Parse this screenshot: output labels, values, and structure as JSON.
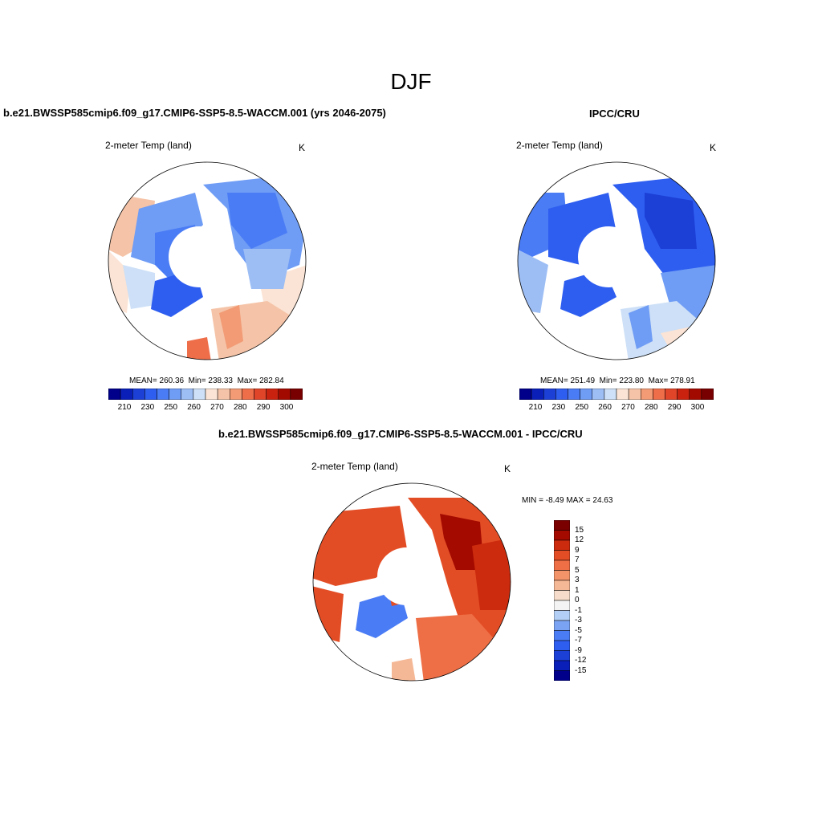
{
  "figure": {
    "title": "DJF"
  },
  "colors": {
    "abs_scale": [
      "#00008a",
      "#0a1fb8",
      "#1c3fd6",
      "#2e5ef0",
      "#4a7cf5",
      "#6f9cf5",
      "#9dbef5",
      "#cde0f7",
      "#fbe4d5",
      "#f5c4a8",
      "#f29b75",
      "#ee6e4a",
      "#e0452a",
      "#c9230f",
      "#a20a00",
      "#790000"
    ],
    "diff_scale": [
      "#00008a",
      "#0a1fb8",
      "#1c3fd6",
      "#2e5ef0",
      "#4a7cf5",
      "#7aa3f3",
      "#b3cff5",
      "#f4f4f4",
      "#f6dccb",
      "#f5b896",
      "#f29369",
      "#ee6e45",
      "#e34d25",
      "#cc2b0d",
      "#a40a00",
      "#7a0000"
    ],
    "land_white": "#ffffff",
    "coast": "#000000"
  },
  "panels": {
    "left": {
      "title": "b.e21.BWSSP585cmip6.f09_g17.CMIP6-SSP5-8.5-WACCM.001 (yrs 2046-2075)",
      "variable": "2-meter Temp (land)",
      "units": "K",
      "stats": {
        "mean_label": "MEAN=",
        "mean": "260.36",
        "min_label": "Min=",
        "min": "238.33",
        "max_label": "Max=",
        "max": "282.84"
      },
      "colorbar_ticks": [
        "210",
        "230",
        "250",
        "260",
        "270",
        "280",
        "290",
        "300"
      ]
    },
    "right": {
      "title": "IPCC/CRU",
      "variable": "2-meter Temp (land)",
      "units": "K",
      "stats": {
        "mean_label": "MEAN=",
        "mean": "251.49",
        "min_label": "Min=",
        "min": "223.80",
        "max_label": "Max=",
        "max": "278.91"
      },
      "colorbar_ticks": [
        "210",
        "230",
        "250",
        "260",
        "270",
        "280",
        "290",
        "300"
      ]
    },
    "bottom": {
      "title": "b.e21.BWSSP585cmip6.f09_g17.CMIP6-SSP5-8.5-WACCM.001 - IPCC/CRU",
      "variable": "2-meter Temp (land)",
      "units": "K",
      "stats": {
        "min_label": "MIN =",
        "min": "-8.49",
        "max_label": "MAX =",
        "max": "24.63"
      },
      "colorbar_ticks": [
        "15",
        "12",
        "9",
        "7",
        "5",
        "3",
        "1",
        "0",
        "-1",
        "-3",
        "-5",
        "-7",
        "-9",
        "-12",
        "-15"
      ]
    }
  }
}
